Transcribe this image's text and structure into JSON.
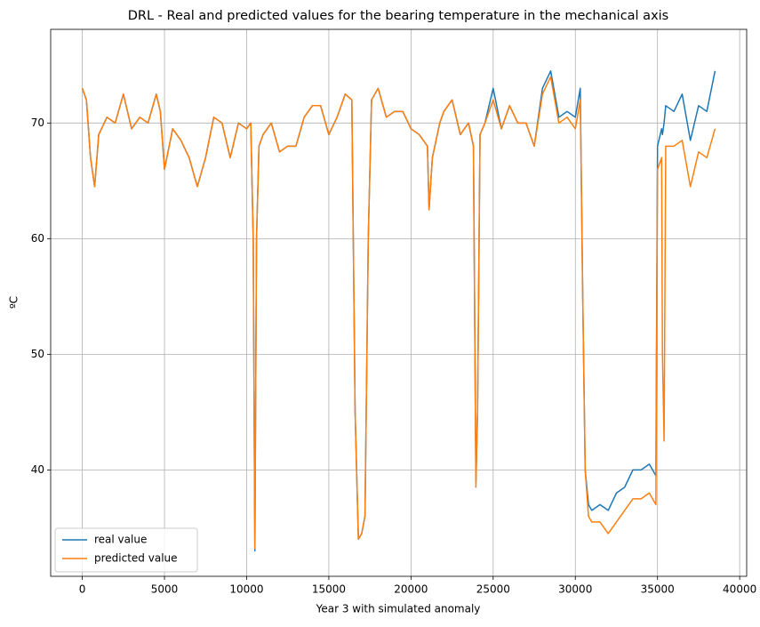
{
  "chart_data": {
    "type": "line",
    "title": "DRL - Real and predicted values for the bearing temperature in the mechanical axis",
    "x_label": "Year 3 with simulated anomaly",
    "y_label": "ºC",
    "x": [
      0,
      250,
      500,
      750,
      1000,
      1500,
      2000,
      2500,
      3000,
      3500,
      4000,
      4500,
      4750,
      5000,
      5500,
      6000,
      6500,
      7000,
      7500,
      8000,
      8500,
      9000,
      9500,
      10000,
      10250,
      10400,
      10500,
      10600,
      10750,
      11000,
      11500,
      12000,
      12500,
      13000,
      13500,
      14000,
      14500,
      15000,
      15500,
      16000,
      16400,
      16600,
      16800,
      17000,
      17200,
      17400,
      17600,
      18000,
      18500,
      19000,
      19500,
      20000,
      20500,
      21000,
      21100,
      21300,
      21750,
      22000,
      22500,
      23000,
      23500,
      23800,
      23950,
      24050,
      24200,
      24500,
      25000,
      25500,
      26000,
      26500,
      27000,
      27500,
      28000,
      28500,
      29000,
      29500,
      30000,
      30300,
      30450,
      30600,
      30800,
      31000,
      31500,
      32000,
      32500,
      33000,
      33500,
      34000,
      34500,
      34900,
      35000,
      35250,
      35300,
      35400,
      35500,
      36000,
      36500,
      37000,
      37500,
      38000,
      38500
    ],
    "series": [
      {
        "name": "real value",
        "color": "#1f77b4",
        "values": [
          73,
          72,
          67,
          64.5,
          69,
          70.5,
          70,
          72.5,
          69.5,
          70.5,
          70,
          72.5,
          71,
          66,
          69.5,
          68.5,
          67,
          64.5,
          67,
          70.5,
          70,
          67,
          70,
          69.5,
          70,
          60,
          33,
          60,
          68,
          69,
          70,
          67.5,
          68,
          68,
          70.5,
          71.5,
          71.5,
          69,
          70.5,
          72.5,
          72,
          45,
          34,
          34.5,
          36,
          60,
          72,
          73,
          70.5,
          71,
          71,
          69.5,
          69,
          68,
          62.5,
          67,
          70,
          71,
          72,
          69,
          70,
          68,
          39,
          45,
          69,
          70,
          73,
          69.5,
          71.5,
          70,
          70,
          68,
          73,
          74.5,
          70.5,
          71,
          70.5,
          73,
          55,
          40,
          37,
          36.5,
          37,
          36.5,
          38,
          38.5,
          40,
          40,
          40.5,
          39.5,
          68,
          69.5,
          69,
          70,
          71.5,
          71,
          72.5,
          68.5,
          71.5,
          71,
          74.5
        ]
      },
      {
        "name": "predicted value",
        "color": "#ff7f0e",
        "values": [
          73,
          72,
          67,
          64.5,
          69,
          70.5,
          70,
          72.5,
          69.5,
          70.5,
          70,
          72.5,
          71,
          66,
          69.5,
          68.5,
          67,
          64.5,
          67,
          70.5,
          70,
          67,
          70,
          69.5,
          70,
          60,
          33.2,
          60,
          68,
          69,
          70,
          67.5,
          68,
          68,
          70.5,
          71.5,
          71.5,
          69,
          70.5,
          72.5,
          72,
          45,
          34,
          34.5,
          36,
          60,
          72,
          73,
          70.5,
          71,
          71,
          69.5,
          69,
          68,
          62.5,
          67,
          70,
          71,
          72,
          69,
          70,
          68,
          38.5,
          45,
          69,
          70,
          72,
          69.5,
          71.5,
          70,
          70,
          68,
          72.5,
          74,
          70,
          70.5,
          69.5,
          72,
          55,
          40,
          36,
          35.5,
          35.5,
          34.5,
          35.5,
          36.5,
          37.5,
          37.5,
          38,
          37,
          66,
          67,
          50,
          42.5,
          68,
          68,
          68.5,
          64.5,
          67.5,
          67,
          69.5
        ]
      }
    ],
    "xlim": [
      -1925,
      40425
    ],
    "ylim": [
      30.8,
      78.1
    ],
    "xticks": [
      0,
      5000,
      10000,
      15000,
      20000,
      25000,
      30000,
      35000,
      40000
    ],
    "yticks": [
      40,
      50,
      60,
      70
    ],
    "grid": true,
    "legend": "lower left"
  }
}
